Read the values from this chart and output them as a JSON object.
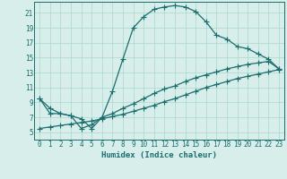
{
  "xlabel": "Humidex (Indice chaleur)",
  "bg_color": "#d7eeea",
  "line_color": "#1a6e6e",
  "xlim": [
    -0.5,
    23.5
  ],
  "ylim": [
    4.0,
    22.5
  ],
  "yticks": [
    5,
    7,
    9,
    11,
    13,
    15,
    17,
    19,
    21
  ],
  "xticks": [
    0,
    1,
    2,
    3,
    4,
    5,
    6,
    7,
    8,
    9,
    10,
    11,
    12,
    13,
    14,
    15,
    16,
    17,
    18,
    19,
    20,
    21,
    22,
    23
  ],
  "grid_color": "#a8d8d0",
  "marker_size": 2.5,
  "line_width": 0.9,
  "curve1_x": [
    0,
    1,
    2,
    3,
    4,
    5,
    6,
    7,
    8,
    9,
    10,
    11,
    12,
    13,
    14,
    15,
    16,
    17,
    18,
    19,
    20,
    21,
    22,
    23
  ],
  "curve1_y": [
    9.5,
    7.5,
    7.5,
    7.2,
    6.8,
    5.5,
    7.0,
    10.5,
    14.8,
    19.0,
    20.5,
    21.5,
    21.8,
    22.0,
    21.8,
    21.2,
    19.8,
    18.0,
    17.5,
    16.5,
    16.2,
    15.5,
    14.8,
    13.5
  ],
  "curve2_x": [
    0,
    1,
    2,
    3,
    4,
    5,
    6,
    7,
    8,
    9,
    10,
    11,
    12,
    13,
    14,
    15,
    16,
    17,
    18,
    19,
    20,
    21,
    22,
    23
  ],
  "curve2_y": [
    5.5,
    5.7,
    5.9,
    6.1,
    6.3,
    6.5,
    6.8,
    7.1,
    7.4,
    7.8,
    8.2,
    8.6,
    9.1,
    9.5,
    10.0,
    10.5,
    11.0,
    11.4,
    11.8,
    12.2,
    12.5,
    12.8,
    13.1,
    13.4
  ],
  "curve3_x": [
    0,
    1,
    2,
    3,
    4,
    5,
    6,
    7,
    8,
    9,
    10,
    11,
    12,
    13,
    14,
    15,
    16,
    17,
    18,
    19,
    20,
    21,
    22,
    23
  ],
  "curve3_y": [
    9.5,
    8.2,
    7.5,
    7.2,
    5.5,
    6.0,
    7.0,
    7.5,
    8.2,
    8.8,
    9.5,
    10.2,
    10.8,
    11.2,
    11.8,
    12.3,
    12.7,
    13.1,
    13.5,
    13.8,
    14.1,
    14.3,
    14.5,
    13.5
  ]
}
